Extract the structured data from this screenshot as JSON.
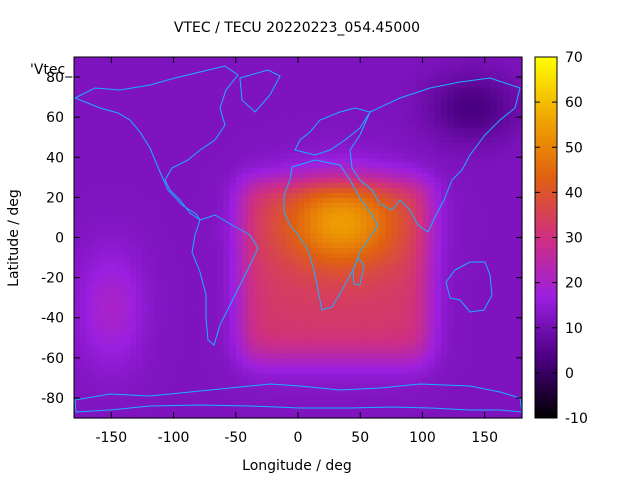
{
  "chart_data": {
    "type": "heatmap",
    "title": "VTEC / TECU 20220223_054.45000",
    "xlabel": "Longitude / deg",
    "ylabel": "Latitude / deg",
    "legend_label": "'Vtec_",
    "xlim": [
      -180,
      180
    ],
    "ylim": [
      -90,
      90
    ],
    "x_ticks": [
      -150,
      -100,
      -50,
      0,
      50,
      100,
      150
    ],
    "y_ticks": [
      -80,
      -60,
      -40,
      -20,
      0,
      20,
      40,
      60,
      80
    ],
    "colorbar": {
      "range": [
        -10,
        70
      ],
      "ticks": [
        -10,
        0,
        10,
        20,
        30,
        40,
        50,
        60,
        70
      ],
      "palette": [
        "#000000",
        "#4b0082",
        "#9b1fe0",
        "#d02f80",
        "#e06010",
        "#f0a800",
        "#ffff00"
      ]
    },
    "grid_resolution": {
      "dlon": 5,
      "dlat": 2.5
    },
    "features": {
      "background_vtec": 12,
      "dayside_peak": {
        "lon": 35,
        "lat": 8,
        "vtec": 60
      },
      "dayside_plateau": {
        "lon_range": [
          -45,
          105
        ],
        "lat_range": [
          -60,
          28
        ],
        "vtec": 38
      },
      "minimum": {
        "lon": 140,
        "lat": 65,
        "vtec": 3
      }
    },
    "continent_color": "#1ab0ff"
  }
}
